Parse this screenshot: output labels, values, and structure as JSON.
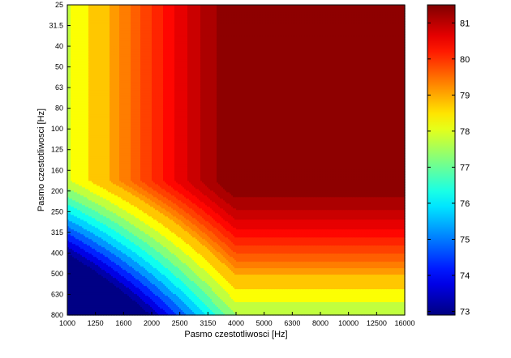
{
  "chart_data": {
    "type": "heatmap",
    "subtype": "filled-contour",
    "title": "",
    "xlabel": "Pasmo czestotliwosci [Hz]",
    "ylabel": "Pasmo czestotliwosci [Hz]",
    "x_ticks": [
      "1000",
      "1250",
      "1600",
      "2000",
      "2500",
      "3150",
      "4000",
      "5000",
      "6300",
      "8000",
      "10000",
      "12500",
      "16000"
    ],
    "y_ticks": [
      "25",
      "31.5",
      "40",
      "50",
      "63",
      "80",
      "100",
      "125",
      "160",
      "200",
      "250",
      "315",
      "400",
      "500",
      "630",
      "800"
    ],
    "colormap": "jet",
    "color_range": [
      72.9,
      81.5
    ],
    "colorbar_ticks": [
      "73",
      "74",
      "75",
      "76",
      "77",
      "78",
      "79",
      "80",
      "81"
    ],
    "contour_levels": [
      73.0,
      73.5,
      74.0,
      74.5,
      75.0,
      75.5,
      76.0,
      76.5,
      77.0,
      77.5,
      78.0,
      78.5,
      79.0,
      79.25,
      79.5,
      79.75,
      80.0,
      80.25,
      80.5,
      80.75,
      81.0,
      81.25
    ],
    "model": "approximate level field z(x, y) = 81.5 - a*(max(0, x0-x))^p - b*(max(0, y-y0))^q - c*(max(0, x0-x))*(max(0, y-y0)); x and y as 0-based indices into x_ticks and y_ticks",
    "params": {
      "x0": 6.0,
      "y0": 8.5,
      "a": 0.38,
      "p": 1.25,
      "b": 0.32,
      "q": 1.35,
      "c": 0.15
    }
  }
}
